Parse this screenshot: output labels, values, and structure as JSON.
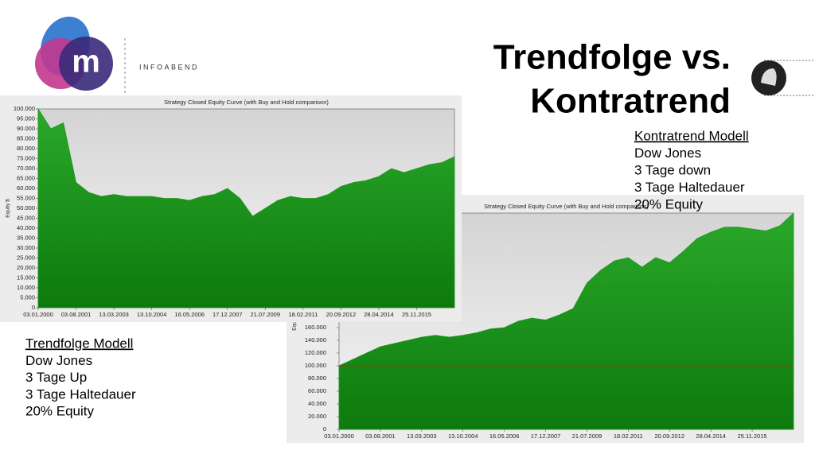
{
  "header": {
    "logo_letter": "m",
    "brand": "INFOABEND"
  },
  "title": [
    "Trendfolge vs.",
    "Kontratrend"
  ],
  "kontratrend": {
    "heading": "Kontratrend Modell",
    "lines": [
      "Dow Jones",
      "3 Tage down",
      "3 Tage Haltedauer",
      "20% Equity"
    ]
  },
  "trendfolge": {
    "heading": "Trendfolge Modell",
    "lines": [
      "Dow Jones",
      "3 Tage Up",
      "3 Tage Haltedauer",
      "20% Equity"
    ]
  },
  "chart_data": [
    {
      "type": "area",
      "title": "Strategy Closed Equity Curve (with Buy and Hold comparison)",
      "y_label": "Equity $",
      "color": "#1f9a1f",
      "categories": [
        "03.01.2000",
        null,
        null,
        "03.08.2001",
        null,
        null,
        "13.03.2003",
        null,
        null,
        "13.10.2004",
        null,
        null,
        "16.05.2006",
        null,
        null,
        "17.12.2007",
        null,
        null,
        "21.07.2009",
        null,
        null,
        "18.02.2011",
        null,
        null,
        "20.09.2012",
        null,
        null,
        "28.04.2014",
        null,
        null,
        "25.11.2015",
        null,
        null,
        null
      ],
      "values": [
        100000,
        90000,
        93000,
        63000,
        58000,
        56000,
        57000,
        56000,
        56000,
        56000,
        55000,
        55000,
        54000,
        56000,
        57000,
        60000,
        55000,
        46000,
        50000,
        54000,
        56000,
        55000,
        55000,
        57000,
        61000,
        63000,
        64000,
        66000,
        70000,
        68000,
        70000,
        72000,
        73000,
        76000
      ],
      "ylim": [
        0,
        100000
      ],
      "yticks": [
        0,
        {
          "value": 5000,
          "label": "5.000"
        },
        {
          "value": 10000,
          "label": "10.000"
        },
        {
          "value": 15000,
          "label": "15.000"
        },
        {
          "value": 20000,
          "label": "20.000"
        },
        {
          "value": 25000,
          "label": "25.000"
        },
        {
          "value": 30000,
          "label": "30.000"
        },
        {
          "value": 35000,
          "label": "35.000"
        },
        {
          "value": 40000,
          "label": "40.000"
        },
        {
          "value": 45000,
          "label": "45.000"
        },
        {
          "value": 50000,
          "label": "50.000"
        },
        {
          "value": 55000,
          "label": "55.000"
        },
        {
          "value": 60000,
          "label": "60.000"
        },
        {
          "value": 65000,
          "label": "65.000"
        },
        {
          "value": 70000,
          "label": "70.000"
        },
        {
          "value": 75000,
          "label": "75.000"
        },
        {
          "value": 80000,
          "label": "80.000"
        },
        {
          "value": 85000,
          "label": "85.000"
        },
        {
          "value": 90000,
          "label": "90.000"
        },
        {
          "value": 95000,
          "label": "95.000"
        },
        {
          "value": 100000,
          "label": "100.000"
        }
      ]
    },
    {
      "type": "area",
      "title": "Strategy Closed Equity Curve (with Buy and Hold comparison)",
      "y_label": "Equity $",
      "color": "#1f9a1f",
      "categories": [
        "03.01.2000",
        null,
        null,
        "03.08.2001",
        null,
        null,
        "13.03.2003",
        null,
        null,
        "13.10.2004",
        null,
        null,
        "16.05.2006",
        null,
        null,
        "17.12.2007",
        null,
        null,
        "21.07.2009",
        null,
        null,
        "18.02.2011",
        null,
        null,
        "20.09.2012",
        null,
        null,
        "28.04.2014",
        null,
        null,
        "25.11.2015",
        null,
        null,
        null
      ],
      "values": [
        100000,
        110000,
        120000,
        130000,
        135000,
        140000,
        145000,
        148000,
        145000,
        148000,
        152000,
        158000,
        160000,
        170000,
        175000,
        172000,
        180000,
        190000,
        230000,
        250000,
        265000,
        270000,
        255000,
        270000,
        262000,
        280000,
        300000,
        310000,
        318000,
        318000,
        315000,
        312000,
        320000,
        340000
      ],
      "ylim": [
        0,
        340000
      ],
      "yticks": [
        0,
        {
          "value": 20000,
          "label": "20.000"
        },
        {
          "value": 40000,
          "label": "40.000"
        },
        {
          "value": 60000,
          "label": "60.000"
        },
        {
          "value": 80000,
          "label": "80.000"
        },
        {
          "value": 100000,
          "label": "100.000"
        },
        {
          "value": 120000,
          "label": "120.000"
        },
        {
          "value": 140000,
          "label": "140.000"
        },
        {
          "value": 160000,
          "label": "160.000"
        }
      ],
      "reference_line": {
        "value": 100000,
        "color": "#cc2200"
      }
    }
  ]
}
